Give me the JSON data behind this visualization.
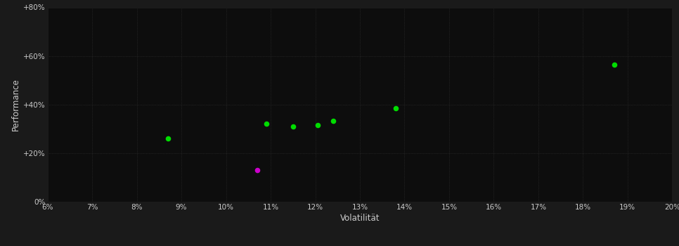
{
  "background_color": "#1a1a1a",
  "plot_bg_color": "#0d0d0d",
  "grid_color": "#333333",
  "text_color": "#cccccc",
  "xlabel": "Volatilität",
  "ylabel": "Performance",
  "xlim": [
    0.06,
    0.2
  ],
  "ylim": [
    0.0,
    0.8
  ],
  "xticks": [
    0.06,
    0.07,
    0.08,
    0.09,
    0.1,
    0.11,
    0.12,
    0.13,
    0.14,
    0.15,
    0.16,
    0.17,
    0.18,
    0.19,
    0.2
  ],
  "yticks": [
    0.0,
    0.2,
    0.4,
    0.6,
    0.8
  ],
  "ytick_labels": [
    "0%",
    "+20%",
    "+40%",
    "+60%",
    "+80%"
  ],
  "xtick_labels": [
    "6%",
    "7%",
    "8%",
    "9%",
    "10%",
    "11%",
    "12%",
    "13%",
    "14%",
    "15%",
    "16%",
    "17%",
    "18%",
    "19%",
    "20%"
  ],
  "green_points": [
    [
      0.087,
      0.26
    ],
    [
      0.109,
      0.32
    ],
    [
      0.115,
      0.31
    ],
    [
      0.1205,
      0.315
    ],
    [
      0.124,
      0.333
    ],
    [
      0.138,
      0.385
    ],
    [
      0.187,
      0.565
    ]
  ],
  "magenta_points": [
    [
      0.107,
      0.13
    ]
  ],
  "green_color": "#00dd00",
  "magenta_color": "#cc00cc",
  "marker_size": 30
}
